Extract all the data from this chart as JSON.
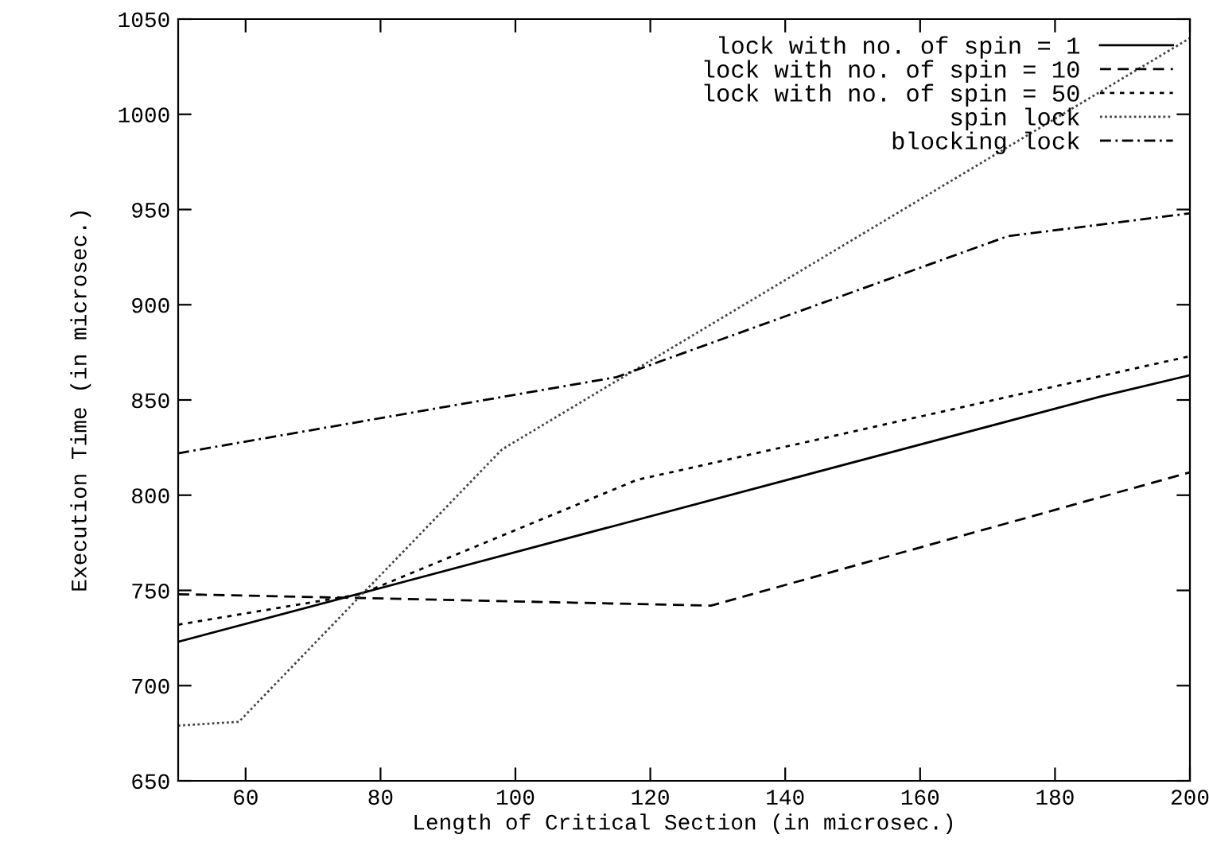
{
  "chart_data": {
    "type": "line",
    "xlabel": "Length of Critical Section (in microsec.)",
    "ylabel": "Execution Time (in microsec.)",
    "xlim": [
      50,
      200
    ],
    "xticks": [
      60,
      80,
      100,
      120,
      140,
      160,
      180,
      200
    ],
    "ylim": [
      650,
      1050
    ],
    "yticks": [
      650,
      700,
      750,
      800,
      850,
      900,
      950,
      1000,
      1050
    ],
    "grid": false,
    "legend": "top right",
    "marker": "none",
    "series": [
      {
        "name": "lock with no. of spin = 1",
        "color": "#000000",
        "line_style": "solid",
        "x": [
          50,
          187,
          200
        ],
        "values": [
          723,
          852,
          863
        ]
      },
      {
        "name": "lock with no. of spin = 10",
        "color": "#000000",
        "line_style": "dashed",
        "x": [
          50,
          77,
          129,
          200
        ],
        "values": [
          748,
          746,
          742,
          812
        ]
      },
      {
        "name": "lock with no. of spin = 50",
        "color": "#000000",
        "line_style": "dotted",
        "x": [
          50,
          77,
          118,
          200
        ],
        "values": [
          732,
          748,
          808,
          873
        ]
      },
      {
        "name": "spin lock",
        "color": "#444444",
        "line_style": "densely dotted",
        "x": [
          50,
          59,
          98,
          200
        ],
        "values": [
          679,
          681,
          824,
          1040
        ]
      },
      {
        "name": "blocking lock",
        "color": "#000000",
        "line_style": "dashdot",
        "x": [
          50,
          115,
          173,
          200
        ],
        "values": [
          822,
          862,
          936,
          948
        ]
      }
    ]
  }
}
